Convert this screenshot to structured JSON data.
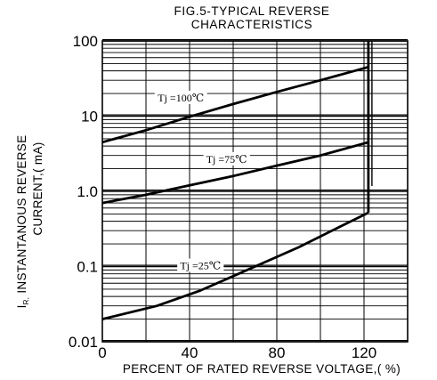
{
  "chart_data": {
    "type": "line",
    "title_line1": "FIG.5-TYPICAL REVERSE",
    "title_line2": "CHARACTERISTICS",
    "xlabel": "PERCENT OF RATED REVERSE VOLTAGE,( %)",
    "ylabel_line1": "INSTANTANOUS REVERSE",
    "ylabel_line2": "CURRENT,( mA)",
    "ylabel_symbol": "I",
    "ylabel_subscript": "R,",
    "xlim": [
      0,
      140
    ],
    "ylim": [
      0.01,
      100
    ],
    "yscale": "log",
    "grid": true,
    "x_ticks": [
      {
        "value": 0,
        "label": "0"
      },
      {
        "value": 40,
        "label": "40"
      },
      {
        "value": 80,
        "label": "80"
      },
      {
        "value": 120,
        "label": "120"
      }
    ],
    "y_ticks": [
      {
        "value": 0.01,
        "label": "0.01"
      },
      {
        "value": 0.1,
        "label": "0.1"
      },
      {
        "value": 1,
        "label": "1.0"
      },
      {
        "value": 10,
        "label": "10"
      },
      {
        "value": 100,
        "label": "100"
      }
    ],
    "series": [
      {
        "label": "Tj =100℃",
        "label_at": {
          "x": 36,
          "y": 17.0
        },
        "points": [
          [
            0,
            4.5
          ],
          [
            20,
            6.5
          ],
          [
            40,
            9.8
          ],
          [
            60,
            14.5
          ],
          [
            80,
            21.0
          ],
          [
            100,
            30.0
          ],
          [
            122,
            45.0
          ]
        ]
      },
      {
        "label": "Tj =75℃",
        "label_at": {
          "x": 57,
          "y": 2.6
        },
        "points": [
          [
            0,
            0.7
          ],
          [
            20,
            0.9
          ],
          [
            40,
            1.2
          ],
          [
            60,
            1.6
          ],
          [
            80,
            2.2
          ],
          [
            100,
            3.0
          ],
          [
            122,
            4.5
          ]
        ]
      },
      {
        "label": "Tj =25℃",
        "label_at": {
          "x": 45,
          "y": 0.1
        },
        "points": [
          [
            0,
            0.02
          ],
          [
            25,
            0.03
          ],
          [
            45,
            0.048
          ],
          [
            70,
            0.1
          ],
          [
            90,
            0.18
          ],
          [
            110,
            0.35
          ],
          [
            122,
            0.52
          ]
        ]
      }
    ],
    "vertical_segment": {
      "x": 122,
      "y_from": 0.52,
      "y_to": 100
    }
  }
}
